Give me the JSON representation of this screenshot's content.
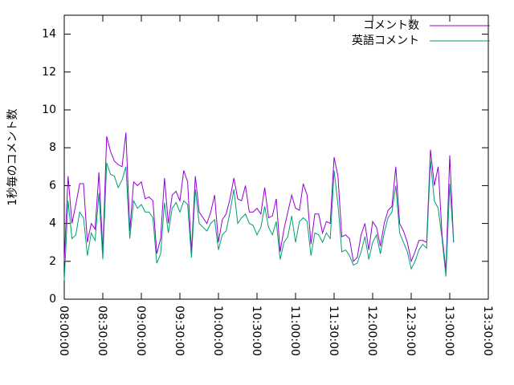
{
  "chart_data": {
    "type": "line",
    "y_label": "1秒毎のコメント数",
    "x": [
      "08:00:00",
      "08:03:00",
      "08:06:00",
      "08:09:00",
      "08:12:00",
      "08:15:00",
      "08:18:00",
      "08:21:00",
      "08:24:00",
      "08:27:00",
      "08:30:00",
      "08:33:00",
      "08:36:00",
      "08:39:00",
      "08:42:00",
      "08:45:00",
      "08:48:00",
      "08:51:00",
      "08:54:00",
      "08:57:00",
      "09:00:00",
      "09:03:00",
      "09:06:00",
      "09:09:00",
      "09:12:00",
      "09:15:00",
      "09:18:00",
      "09:21:00",
      "09:24:00",
      "09:27:00",
      "09:30:00",
      "09:33:00",
      "09:36:00",
      "09:39:00",
      "09:42:00",
      "09:45:00",
      "09:48:00",
      "09:51:00",
      "09:54:00",
      "09:57:00",
      "10:00:00",
      "10:03:00",
      "10:06:00",
      "10:09:00",
      "10:12:00",
      "10:15:00",
      "10:18:00",
      "10:21:00",
      "10:24:00",
      "10:27:00",
      "10:30:00",
      "10:33:00",
      "10:36:00",
      "10:39:00",
      "10:42:00",
      "10:45:00",
      "10:48:00",
      "10:51:00",
      "10:54:00",
      "10:57:00",
      "11:00:00",
      "11:03:00",
      "11:06:00",
      "11:09:00",
      "11:12:00",
      "11:15:00",
      "11:18:00",
      "11:21:00",
      "11:24:00",
      "11:27:00",
      "11:30:00",
      "11:33:00",
      "11:36:00",
      "11:39:00",
      "11:42:00",
      "11:45:00",
      "11:48:00",
      "11:51:00",
      "11:54:00",
      "11:57:00",
      "12:00:00",
      "12:03:00",
      "12:06:00",
      "12:09:00",
      "12:12:00",
      "12:15:00",
      "12:18:00",
      "12:21:00",
      "12:24:00",
      "12:27:00",
      "12:30:00",
      "12:33:00",
      "12:36:00",
      "12:39:00",
      "12:42:00",
      "12:45:00",
      "12:48:00",
      "12:51:00",
      "12:54:00",
      "12:57:00",
      "13:00:00",
      "13:03:00"
    ],
    "series": [
      {
        "name": "コメント数",
        "color": "#9400d3",
        "values": [
          2,
          6.5,
          4,
          5,
          6.1,
          6.1,
          3,
          4,
          3.7,
          6.7,
          2.5,
          8.6,
          7.8,
          7.3,
          7.1,
          7.0,
          8.8,
          3.6,
          6.2,
          6.0,
          6.2,
          5.3,
          5.4,
          5.2,
          2.4,
          3.2,
          6.4,
          4.0,
          5.5,
          5.7,
          5.2,
          6.8,
          6.2,
          2.5,
          6.5,
          4.6,
          4.3,
          4.0,
          4.6,
          5.5,
          3.0,
          4.2,
          4.5,
          5.3,
          6.4,
          5.3,
          5.2,
          6.0,
          4.6,
          4.6,
          4.8,
          4.5,
          5.9,
          4.3,
          4.4,
          5.3,
          2.5,
          3.7,
          4.6,
          5.5,
          4.8,
          4.7,
          6.1,
          5.5,
          2.9,
          4.5,
          4.5,
          3.5,
          4.1,
          4.0,
          7.5,
          6.5,
          3.3,
          3.4,
          3.2,
          2.0,
          2.2,
          3.4,
          4.0,
          2.6,
          4.1,
          3.8,
          2.8,
          4.0,
          4.7,
          4.9,
          7.0,
          4.0,
          3.6,
          3.0,
          2.0,
          2.5,
          3.1,
          3.1,
          3.0,
          7.9,
          6.0,
          7.0,
          3.4,
          1.5,
          7.6,
          3.0
        ]
      },
      {
        "name": "英語コメント",
        "color": "#009e73",
        "values": [
          1,
          5.2,
          3.2,
          3.4,
          4.6,
          4.3,
          2.3,
          3.5,
          3.1,
          5.6,
          2.1,
          7.2,
          6.6,
          6.5,
          5.9,
          6.3,
          7.0,
          3.2,
          5.2,
          4.8,
          5.0,
          4.6,
          4.6,
          4.3,
          1.9,
          2.4,
          5.1,
          3.5,
          4.8,
          5.1,
          4.6,
          5.2,
          5.0,
          2.2,
          5.8,
          4.0,
          3.8,
          3.6,
          4.0,
          4.2,
          2.6,
          3.4,
          3.6,
          4.6,
          5.8,
          4.0,
          4.3,
          4.5,
          4.0,
          3.9,
          3.4,
          3.8,
          4.9,
          3.8,
          3.4,
          4.1,
          2.1,
          3.0,
          3.3,
          4.4,
          3.0,
          4.1,
          4.3,
          4.1,
          2.3,
          3.5,
          3.4,
          3.0,
          3.5,
          3.2,
          6.8,
          5.0,
          2.5,
          2.6,
          2.3,
          1.8,
          1.9,
          2.5,
          3.3,
          2.1,
          3.0,
          3.4,
          2.4,
          3.5,
          4.3,
          4.6,
          6.0,
          3.5,
          3.0,
          2.5,
          1.6,
          2.0,
          2.6,
          2.9,
          2.7,
          7.3,
          5.2,
          4.8,
          3.2,
          1.2,
          6.1,
          3.0
        ]
      }
    ],
    "xlim": [
      "08:00:00",
      "13:30:00"
    ],
    "xticks": [
      "08:00:00",
      "08:30:00",
      "09:00:00",
      "09:30:00",
      "10:00:00",
      "10:30:00",
      "11:00:00",
      "11:30:00",
      "12:00:00",
      "12:30:00",
      "13:00:00",
      "13:30:00"
    ],
    "ylim": [
      0,
      15
    ],
    "yticks": [
      0,
      2,
      4,
      6,
      8,
      10,
      12,
      14
    ],
    "legend": "top-right"
  }
}
